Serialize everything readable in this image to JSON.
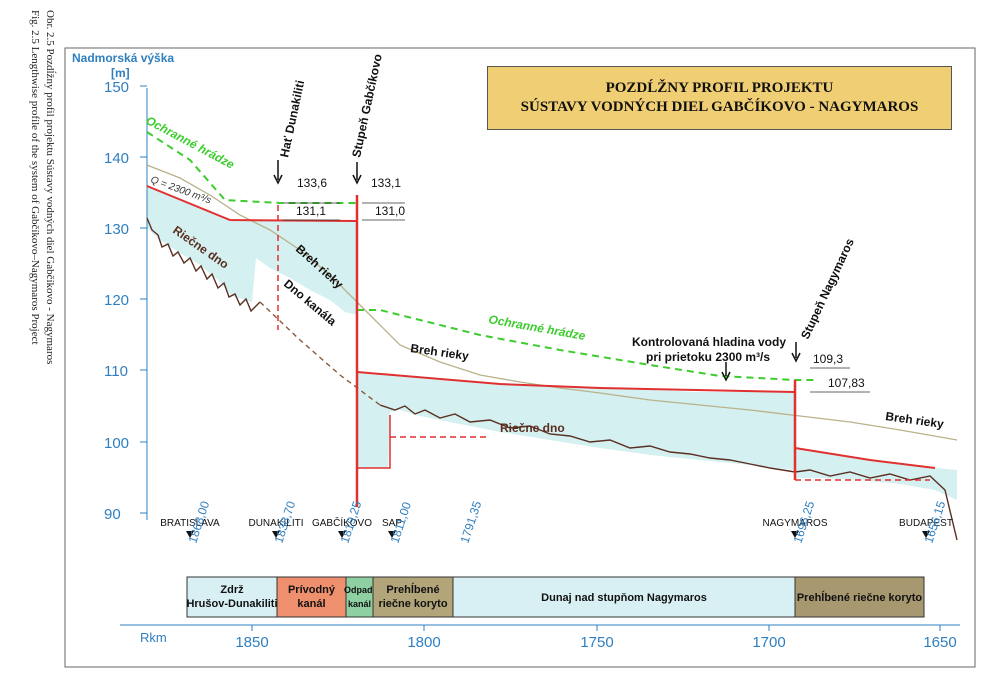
{
  "side_caption": {
    "line1": "Obr. 2.5  Pozdĺžny profil projektu Sústavy vodných diel Gabčíkovo - Nagymaros",
    "line2": "Fig. 2.5  Lengthwise profile of the system of Gabčíkovo–Nagymaros Project"
  },
  "title": {
    "line1": "POZDĹŽNY PROFIL PROJEKTU",
    "line2": "SÚSTAVY VODNÝCH DIEL GABČÍKOVO - NAGYMAROS"
  },
  "y_axis": {
    "label1": "Nadmorská výška",
    "label2": "[m]",
    "ticks": [
      "150",
      "140",
      "130",
      "120",
      "110",
      "100",
      "90"
    ]
  },
  "x_axis": {
    "label": "Rkm",
    "ticks": [
      "1850",
      "1800",
      "1750",
      "1700",
      "1650"
    ]
  },
  "labels": {
    "ochranne_hradze": "Ochranné hrádze",
    "q": "Q = 2300 m³/s",
    "ricne_dno": "Riečne dno",
    "hat_dunakiliti": "Hať Dunakiliti",
    "stupen_gabcikovo": "Stupeň Gabčíkovo",
    "stupen_nagymaros": "Stupeň Nagymaros",
    "breh_rieky": "Breh rieky",
    "dno_kanala": "Dno kanála",
    "kontrolovana_1": "Kontrolovaná hladina vody",
    "kontrolovana_2": "pri prietoku 2300 m³/s"
  },
  "levels": {
    "d_top": "133,6",
    "d_bot": "131,1",
    "g_top": "133,1",
    "g_bot": "131,0",
    "n_top": "109,3",
    "n_bot": "107,83"
  },
  "places": [
    {
      "name": "BRATISLAVA",
      "rkm": "1868,00"
    },
    {
      "name": "DUNAKILITI",
      "rkm": "1838,70"
    },
    {
      "name": "GABČÍKOVO",
      "rkm": "1819,25"
    },
    {
      "name": "SAP",
      "rkm": "1811,00"
    },
    {
      "name": "",
      "rkm": "1791,35"
    },
    {
      "name": "NAGYMAROS",
      "rkm": "1696,25"
    },
    {
      "name": "BUDAPEST",
      "rkm": "1656,15"
    }
  ],
  "segments": [
    {
      "line1": "Zdrž",
      "line2": "Hrušov-Dunakiliti"
    },
    {
      "line1": "Prívodný",
      "line2": "kanál"
    },
    {
      "line1": "Odpad.",
      "line2": "kanál"
    },
    {
      "line1": "Prehĺbené",
      "line2": "riečne koryto"
    },
    {
      "line1": "Dunaj nad stupňom Nagymaros",
      "line2": ""
    },
    {
      "line1": "Prehĺbené riečne koryto",
      "line2": ""
    }
  ],
  "colors": {
    "water": "#d4f0f0",
    "dam": "#e03030",
    "levee": "#3ccc2e",
    "bed": "#5a2f22",
    "bank": "#b9b28a",
    "axis_blue": "#2f7fc0",
    "title_bg": "#f0cf74"
  }
}
